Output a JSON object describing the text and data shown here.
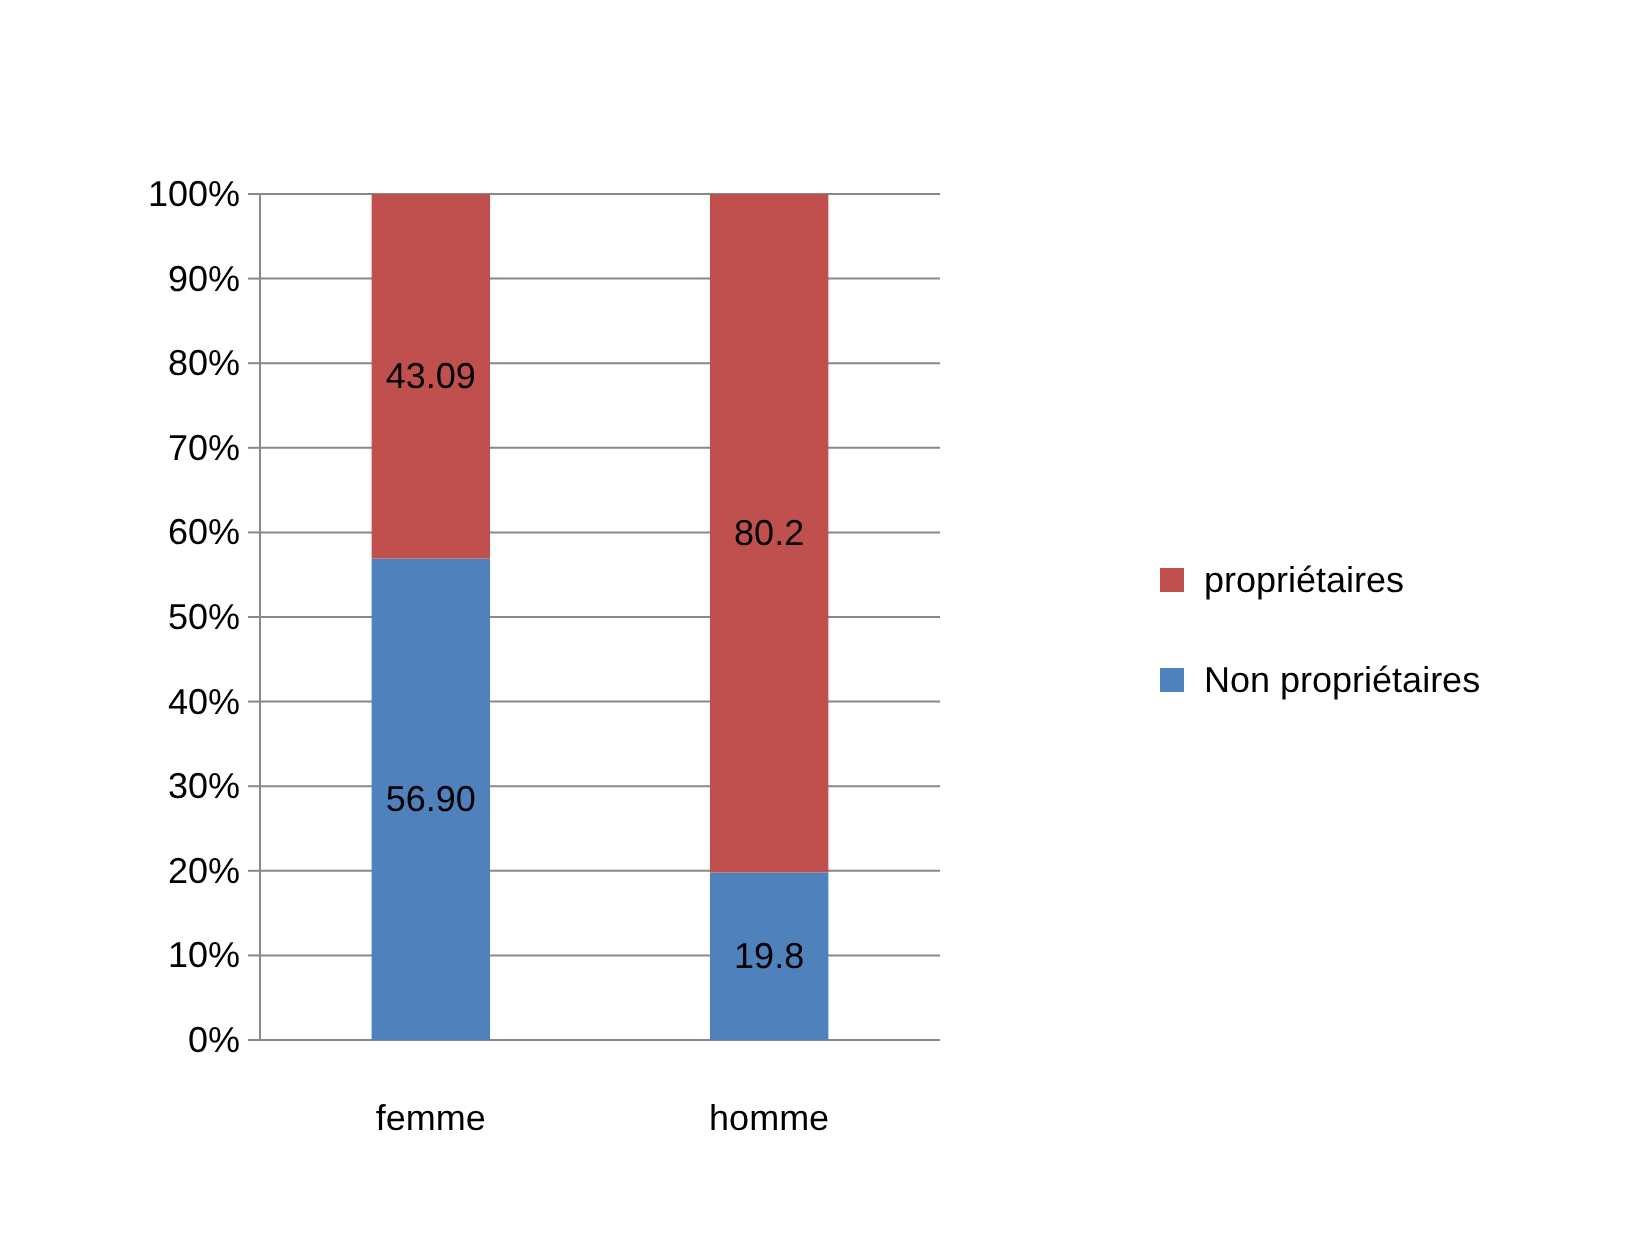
{
  "chart_data": {
    "type": "bar",
    "stacked": true,
    "categories": [
      "femme",
      "homme"
    ],
    "series": [
      {
        "name": "Non propriétaires",
        "color": "#4f81bd",
        "values": [
          56.9,
          19.8
        ],
        "value_labels": [
          "56.90",
          "19.8"
        ]
      },
      {
        "name": "propriétaires",
        "color": "#c0504d",
        "values": [
          43.09,
          80.2
        ],
        "value_labels": [
          "43.09",
          "80.2"
        ]
      }
    ],
    "ylim": [
      0,
      100
    ],
    "yticks": [
      {
        "value": 0,
        "label": "0%"
      },
      {
        "value": 10,
        "label": "10%"
      },
      {
        "value": 20,
        "label": "20%"
      },
      {
        "value": 30,
        "label": "30%"
      },
      {
        "value": 40,
        "label": "40%"
      },
      {
        "value": 50,
        "label": "50%"
      },
      {
        "value": 60,
        "label": "60%"
      },
      {
        "value": 70,
        "label": "70%"
      },
      {
        "value": 80,
        "label": "80%"
      },
      {
        "value": 90,
        "label": "90%"
      },
      {
        "value": 100,
        "label": "100%"
      }
    ],
    "grid": true,
    "legend": "right"
  }
}
